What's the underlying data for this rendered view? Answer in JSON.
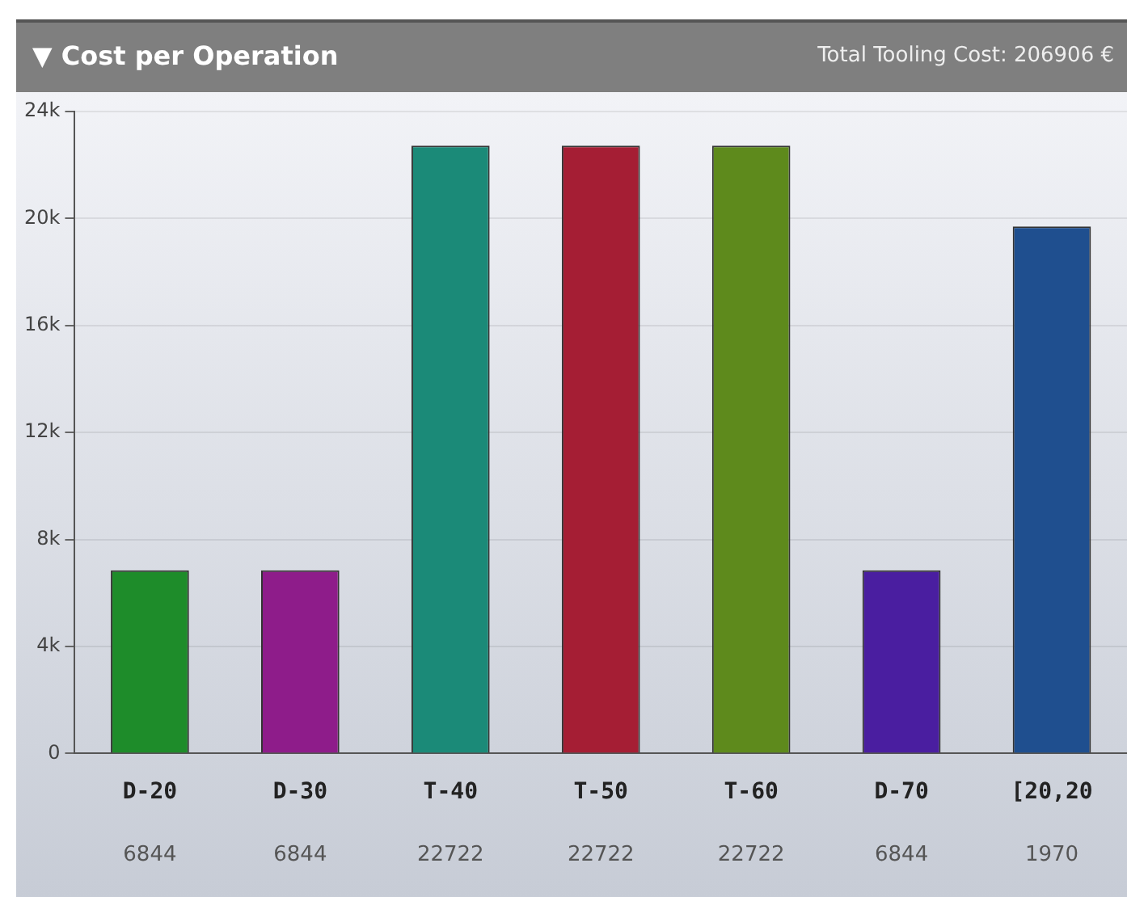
{
  "chart_data": {
    "type": "bar",
    "title": "▼ Cost per Operation",
    "subtitle": "Total Tooling Cost: 206906 €",
    "categories": [
      "D-20",
      "D-30",
      "T-40",
      "T-50",
      "T-60",
      "D-70",
      "[20,20"
    ],
    "values": [
      6844,
      6844,
      22722,
      22722,
      22722,
      6844,
      19700
    ],
    "value_labels": [
      "6844",
      "6844",
      "22722",
      "22722",
      "22722",
      "6844",
      null
    ],
    "annotations": [
      "1970"
    ],
    "colors": [
      "#1e8c2a",
      "#8e1c8a",
      "#1b8a78",
      "#a51e34",
      "#5e8a1c",
      "#4a1ea0",
      "#1f4f8f"
    ],
    "ylim": [
      0,
      24000
    ],
    "yticks": [
      {
        "value": 0,
        "label": "0"
      },
      {
        "value": 4000,
        "label": "4k"
      },
      {
        "value": 8000,
        "label": "8k"
      },
      {
        "value": 12000,
        "label": "12k"
      },
      {
        "value": 16000,
        "label": "16k"
      },
      {
        "value": 20000,
        "label": "20k"
      },
      {
        "value": 24000,
        "label": "24k"
      }
    ],
    "grid": "y"
  }
}
